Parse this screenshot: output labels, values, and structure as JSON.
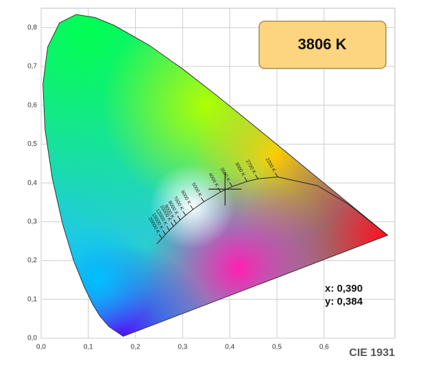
{
  "chart_data": {
    "type": "chromaticity",
    "footer": "CIE 1931",
    "xlim": [
      0,
      0.75
    ],
    "ylim": [
      0,
      0.85
    ],
    "grid": true,
    "xticks": [
      {
        "value": 0,
        "label": "0,0"
      },
      {
        "value": 0.1,
        "label": "0,1"
      },
      {
        "value": 0.2,
        "label": "0,2"
      },
      {
        "value": 0.3,
        "label": "0,3"
      },
      {
        "value": 0.4,
        "label": "0,4"
      },
      {
        "value": 0.5,
        "label": "0,5"
      },
      {
        "value": 0.6,
        "label": "0,6"
      }
    ],
    "yticks": [
      {
        "value": 0,
        "label": "0,0"
      },
      {
        "value": 0.1,
        "label": "0,1"
      },
      {
        "value": 0.2,
        "label": "0,2"
      },
      {
        "value": 0.3,
        "label": "0,3"
      },
      {
        "value": 0.4,
        "label": "0,4"
      },
      {
        "value": 0.5,
        "label": "0,5"
      },
      {
        "value": 0.6,
        "label": "0,6"
      },
      {
        "value": 0.7,
        "label": "0,7"
      },
      {
        "value": 0.8,
        "label": "0,8"
      }
    ],
    "spectral_locus": {
      "x": [
        0.1741,
        0.144,
        0.1241,
        0.1096,
        0.0913,
        0.0687,
        0.0454,
        0.0235,
        0.0082,
        0.0039,
        0.0139,
        0.0389,
        0.0743,
        0.1142,
        0.1547,
        0.2296,
        0.3016,
        0.3731,
        0.4441,
        0.5125,
        0.5752,
        0.627,
        0.6915,
        0.7347
      ],
      "y": [
        0.005,
        0.0297,
        0.0578,
        0.0868,
        0.1327,
        0.2007,
        0.295,
        0.4127,
        0.5384,
        0.6548,
        0.7502,
        0.812,
        0.8338,
        0.8262,
        0.8059,
        0.7543,
        0.6923,
        0.6245,
        0.5547,
        0.4866,
        0.4242,
        0.3725,
        0.3083,
        0.2653
      ]
    },
    "planckian_locus": {
      "x": [
        0.2456,
        0.256,
        0.2637,
        0.2719,
        0.2807,
        0.2868,
        0.2951,
        0.3064,
        0.3221,
        0.3451,
        0.3805,
        0.4053,
        0.4369,
        0.4599,
        0.5018,
        0.5857,
        0.6528,
        0.7347
      ],
      "y": [
        0.2436,
        0.2569,
        0.2673,
        0.278,
        0.2883,
        0.2951,
        0.3048,
        0.3166,
        0.3318,
        0.3516,
        0.3768,
        0.3907,
        0.4041,
        0.4106,
        0.4153,
        0.3931,
        0.3444,
        0.2653
      ],
      "labels": [
        null,
        "20000 K",
        "15000 K",
        "12000 K",
        "10000 K",
        "9000 K",
        "8000 K",
        "7000 K",
        "6000 K",
        "5000 K",
        "4000 K",
        "3500 K",
        "3000 K",
        "2700 K",
        "2200 K",
        null,
        null,
        null
      ]
    },
    "point": {
      "x": 0.39,
      "y": 0.384,
      "x_label": "x: 0,390",
      "y_label": "y: 0,384"
    },
    "cct": {
      "value": 3806,
      "label": "3806 K"
    }
  }
}
